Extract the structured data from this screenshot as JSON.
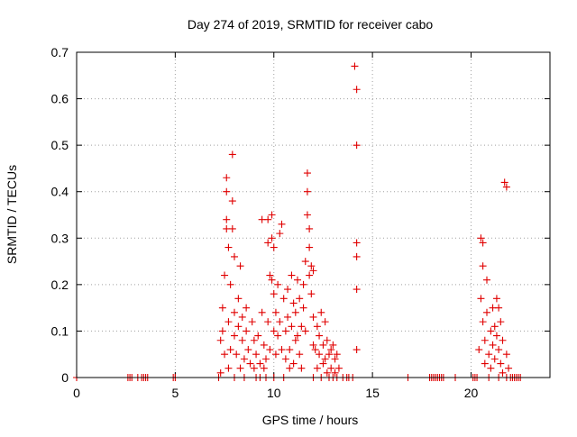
{
  "chart_data": {
    "type": "scatter",
    "title": "Day 274 of 2019, SRMTID for receiver cabo",
    "xlabel": "GPS time / hours",
    "ylabel": "SRMTID / TECUs",
    "xlim": [
      0,
      24
    ],
    "ylim": [
      0,
      0.7
    ],
    "xticks": [
      0,
      5,
      10,
      15,
      20
    ],
    "xtick_labels": [
      "0",
      "5",
      "10",
      "15",
      "20"
    ],
    "yticks": [
      0,
      0.1,
      0.2,
      0.3,
      0.4,
      0.5,
      0.6,
      0.7
    ],
    "ytick_labels": [
      "0",
      "0.1",
      "0.2",
      "0.3",
      "0.4",
      "0.5",
      "0.6",
      "0.7"
    ],
    "grid": true,
    "marker": "+",
    "series": [
      {
        "name": "SRMTID",
        "color": "#e00000",
        "points": [
          [
            0.0,
            0.0
          ],
          [
            2.6,
            0.0
          ],
          [
            2.7,
            0.0
          ],
          [
            2.8,
            0.0
          ],
          [
            3.1,
            0.0
          ],
          [
            3.3,
            0.0
          ],
          [
            3.4,
            0.0
          ],
          [
            3.5,
            0.0
          ],
          [
            3.6,
            0.0
          ],
          [
            4.9,
            0.0
          ],
          [
            5.0,
            0.0
          ],
          [
            7.2,
            0.0
          ],
          [
            7.3,
            0.01
          ],
          [
            7.3,
            0.08
          ],
          [
            7.4,
            0.15
          ],
          [
            7.4,
            0.1
          ],
          [
            7.5,
            0.05
          ],
          [
            7.5,
            0.22
          ],
          [
            7.6,
            0.32
          ],
          [
            7.6,
            0.43
          ],
          [
            7.6,
            0.4
          ],
          [
            7.6,
            0.34
          ],
          [
            7.7,
            0.28
          ],
          [
            7.7,
            0.12
          ],
          [
            7.7,
            0.02
          ],
          [
            7.8,
            0.2
          ],
          [
            7.8,
            0.06
          ],
          [
            7.9,
            0.48
          ],
          [
            7.9,
            0.38
          ],
          [
            7.9,
            0.32
          ],
          [
            8.0,
            0.26
          ],
          [
            8.0,
            0.14
          ],
          [
            8.0,
            0.09
          ],
          [
            8.0,
            0.0
          ],
          [
            8.1,
            0.05
          ],
          [
            8.2,
            0.17
          ],
          [
            8.2,
            0.11
          ],
          [
            8.3,
            0.02
          ],
          [
            8.3,
            0.24
          ],
          [
            8.4,
            0.08
          ],
          [
            8.4,
            0.13
          ],
          [
            8.5,
            0.04
          ],
          [
            8.5,
            0.0
          ],
          [
            8.6,
            0.15
          ],
          [
            8.6,
            0.1
          ],
          [
            8.7,
            0.06
          ],
          [
            8.8,
            0.03
          ],
          [
            8.9,
            0.12
          ],
          [
            9.0,
            0.08
          ],
          [
            9.0,
            0.02
          ],
          [
            9.1,
            0.05
          ],
          [
            9.1,
            0.0
          ],
          [
            9.2,
            0.09
          ],
          [
            9.3,
            0.03
          ],
          [
            9.3,
            0.0
          ],
          [
            9.4,
            0.34
          ],
          [
            9.4,
            0.14
          ],
          [
            9.5,
            0.07
          ],
          [
            9.5,
            0.02
          ],
          [
            9.6,
            0.04
          ],
          [
            9.6,
            0.0
          ],
          [
            9.7,
            0.29
          ],
          [
            9.7,
            0.34
          ],
          [
            9.7,
            0.12
          ],
          [
            9.8,
            0.06
          ],
          [
            9.8,
            0.22
          ],
          [
            9.9,
            0.35
          ],
          [
            9.9,
            0.21
          ],
          [
            9.9,
            0.3
          ],
          [
            10.0,
            0.28
          ],
          [
            10.0,
            0.18
          ],
          [
            10.0,
            0.1
          ],
          [
            10.0,
            0.0
          ],
          [
            10.1,
            0.14
          ],
          [
            10.1,
            0.05
          ],
          [
            10.2,
            0.09
          ],
          [
            10.2,
            0.2
          ],
          [
            10.3,
            0.31
          ],
          [
            10.3,
            0.12
          ],
          [
            10.4,
            0.33
          ],
          [
            10.4,
            0.06
          ],
          [
            10.5,
            0.17
          ],
          [
            10.5,
            0.0
          ],
          [
            10.6,
            0.1
          ],
          [
            10.6,
            0.04
          ],
          [
            10.7,
            0.13
          ],
          [
            10.7,
            0.19
          ],
          [
            10.8,
            0.06
          ],
          [
            10.8,
            0.02
          ],
          [
            10.9,
            0.22
          ],
          [
            10.9,
            0.11
          ],
          [
            11.0,
            0.16
          ],
          [
            11.0,
            0.03
          ],
          [
            11.1,
            0.08
          ],
          [
            11.1,
            0.14
          ],
          [
            11.2,
            0.21
          ],
          [
            11.2,
            0.09
          ],
          [
            11.3,
            0.05
          ],
          [
            11.3,
            0.17
          ],
          [
            11.4,
            0.11
          ],
          [
            11.4,
            0.02
          ],
          [
            11.5,
            0.2
          ],
          [
            11.5,
            0.15
          ],
          [
            11.6,
            0.1
          ],
          [
            11.6,
            0.25
          ],
          [
            11.7,
            0.44
          ],
          [
            11.7,
            0.4
          ],
          [
            11.7,
            0.35
          ],
          [
            11.8,
            0.32
          ],
          [
            11.8,
            0.28
          ],
          [
            11.8,
            0.22
          ],
          [
            11.9,
            0.24
          ],
          [
            11.9,
            0.18
          ],
          [
            12.0,
            0.23
          ],
          [
            12.0,
            0.13
          ],
          [
            12.0,
            0.07
          ],
          [
            12.0,
            0.0
          ],
          [
            12.1,
            0.06
          ],
          [
            12.2,
            0.11
          ],
          [
            12.2,
            0.02
          ],
          [
            12.3,
            0.09
          ],
          [
            12.3,
            0.05
          ],
          [
            12.4,
            0.14
          ],
          [
            12.4,
            0.0
          ],
          [
            12.5,
            0.07
          ],
          [
            12.5,
            0.03
          ],
          [
            12.6,
            0.12
          ],
          [
            12.6,
            0.04
          ],
          [
            12.7,
            0.08
          ],
          [
            12.7,
            0.01
          ],
          [
            12.8,
            0.05
          ],
          [
            12.8,
            0.0
          ],
          [
            12.9,
            0.06
          ],
          [
            12.9,
            0.02
          ],
          [
            13.0,
            0.07
          ],
          [
            13.0,
            0.0
          ],
          [
            13.1,
            0.04
          ],
          [
            13.1,
            0.01
          ],
          [
            13.2,
            0.05
          ],
          [
            13.2,
            0.0
          ],
          [
            13.3,
            0.02
          ],
          [
            13.5,
            0.0
          ],
          [
            13.7,
            0.0
          ],
          [
            13.8,
            0.0
          ],
          [
            14.0,
            0.0
          ],
          [
            14.1,
            0.67
          ],
          [
            14.2,
            0.62
          ],
          [
            14.2,
            0.5
          ],
          [
            14.2,
            0.29
          ],
          [
            14.2,
            0.26
          ],
          [
            14.2,
            0.19
          ],
          [
            14.2,
            0.06
          ],
          [
            16.8,
            0.0
          ],
          [
            17.9,
            0.0
          ],
          [
            18.0,
            0.0
          ],
          [
            18.1,
            0.0
          ],
          [
            18.2,
            0.0
          ],
          [
            18.3,
            0.0
          ],
          [
            18.4,
            0.0
          ],
          [
            18.5,
            0.0
          ],
          [
            18.6,
            0.0
          ],
          [
            19.2,
            0.0
          ],
          [
            20.1,
            0.0
          ],
          [
            20.2,
            0.0
          ],
          [
            20.3,
            0.0
          ],
          [
            20.4,
            0.06
          ],
          [
            20.5,
            0.17
          ],
          [
            20.5,
            0.3
          ],
          [
            20.6,
            0.29
          ],
          [
            20.6,
            0.24
          ],
          [
            20.6,
            0.12
          ],
          [
            20.7,
            0.08
          ],
          [
            20.7,
            0.03
          ],
          [
            20.8,
            0.14
          ],
          [
            20.8,
            0.21
          ],
          [
            20.9,
            0.05
          ],
          [
            20.9,
            0.0
          ],
          [
            21.0,
            0.1
          ],
          [
            21.0,
            0.02
          ],
          [
            21.1,
            0.15
          ],
          [
            21.1,
            0.07
          ],
          [
            21.2,
            0.11
          ],
          [
            21.2,
            0.04
          ],
          [
            21.3,
            0.17
          ],
          [
            21.3,
            0.09
          ],
          [
            21.4,
            0.15
          ],
          [
            21.4,
            0.06
          ],
          [
            21.4,
            0.0
          ],
          [
            21.5,
            0.12
          ],
          [
            21.5,
            0.03
          ],
          [
            21.6,
            0.08
          ],
          [
            21.6,
            0.01
          ],
          [
            21.7,
            0.42
          ],
          [
            21.8,
            0.41
          ],
          [
            21.8,
            0.05
          ],
          [
            21.8,
            0.0
          ],
          [
            21.9,
            0.02
          ],
          [
            22.0,
            0.0
          ],
          [
            22.1,
            0.0
          ],
          [
            22.2,
            0.0
          ],
          [
            22.3,
            0.0
          ],
          [
            22.4,
            0.0
          ],
          [
            22.5,
            0.0
          ]
        ]
      }
    ]
  }
}
